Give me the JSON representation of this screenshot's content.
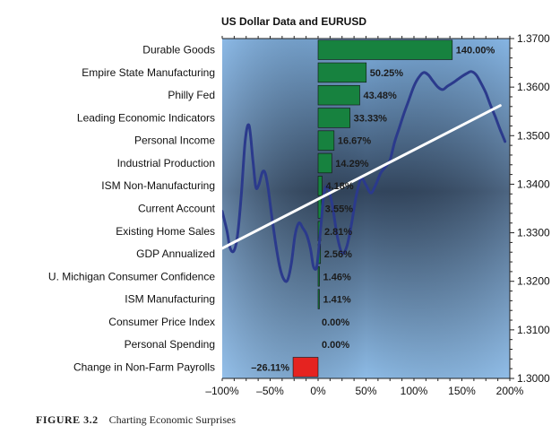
{
  "caption": {
    "figure": "FIGURE 3.2",
    "text": "Charting Economic Surprises"
  },
  "colors": {
    "positive_bar": "#17823f",
    "negative_bar": "#e52320",
    "eurusd_line": "#2b3a8c",
    "trend_line": "#ffffff"
  },
  "chart_data": {
    "type": "bar",
    "orientation": "horizontal",
    "title": "US Dollar Data and EURUSD",
    "categories": [
      "Durable Goods",
      "Empire State Manufacturing",
      "Philly Fed",
      "Leading Economic Indicators",
      "Personal Income",
      "Industrial Production",
      "ISM Non-Manufacturing",
      "Current Account",
      "Existing Home Sales",
      "GDP Annualized",
      "U. Michigan Consumer Confidence",
      "ISM Manufacturing",
      "Consumer Price Index",
      "Personal Spending",
      "Change in Non-Farm Payrolls"
    ],
    "values": [
      140.0,
      50.25,
      43.48,
      33.33,
      16.67,
      14.29,
      4.18,
      3.55,
      2.81,
      2.56,
      1.46,
      1.41,
      0.0,
      0.0,
      -26.11
    ],
    "value_labels": [
      "140.00%",
      "50.25%",
      "43.48%",
      "33.33%",
      "16.67%",
      "14.29%",
      "4.18%",
      "3.55%",
      "2.81%",
      "2.56%",
      "1.46%",
      "1.41%",
      "0.00%",
      "0.00%",
      "–26.11%"
    ],
    "xlim": [
      -100,
      200
    ],
    "xticks": [
      -100,
      -50,
      0,
      50,
      100,
      150,
      200
    ],
    "xtick_labels": [
      "–100%",
      "–50%",
      "0%",
      "50%",
      "100%",
      "150%",
      "200%"
    ],
    "secondary_axis": {
      "side": "right",
      "range": [
        1.3,
        1.37
      ],
      "ticks": [
        1.3,
        1.31,
        1.32,
        1.33,
        1.34,
        1.35,
        1.36,
        1.37
      ],
      "tick_labels": [
        "1.3000",
        "1.3100",
        "1.3200",
        "1.3300",
        "1.3400",
        "1.3500",
        "1.3600",
        "1.3700"
      ]
    },
    "overlay_series": {
      "type": "line",
      "x": [
        -100,
        -95,
        -92,
        -88,
        -84,
        -80,
        -76,
        -72,
        -68,
        -65,
        -62,
        -58,
        -55,
        -52,
        -48,
        -44,
        -40,
        -36,
        -32,
        -28,
        -24,
        -20,
        -16,
        -12,
        -8,
        -5,
        -2,
        0,
        3,
        6,
        10,
        15,
        20,
        25,
        30,
        35,
        40,
        45,
        50,
        55,
        60,
        65,
        70,
        75,
        80,
        85,
        90,
        95,
        100,
        105,
        110,
        115,
        120,
        125,
        130,
        135,
        140,
        145,
        150,
        155,
        160,
        165,
        170,
        175,
        180,
        185,
        190,
        195
      ],
      "y": [
        1.3344,
        1.3304,
        1.327,
        1.3262,
        1.3295,
        1.338,
        1.349,
        1.3521,
        1.345,
        1.3395,
        1.3398,
        1.3425,
        1.3422,
        1.339,
        1.333,
        1.3275,
        1.323,
        1.3205,
        1.3202,
        1.3235,
        1.3295,
        1.332,
        1.331,
        1.3296,
        1.3268,
        1.3232,
        1.3226,
        1.3252,
        1.3315,
        1.3378,
        1.3395,
        1.3355,
        1.3293,
        1.3258,
        1.3272,
        1.332,
        1.3378,
        1.3412,
        1.3398,
        1.3382,
        1.3398,
        1.3422,
        1.3435,
        1.345,
        1.3488,
        1.3518,
        1.3548,
        1.3575,
        1.3602,
        1.362,
        1.363,
        1.3625,
        1.3612,
        1.36,
        1.3595,
        1.3602,
        1.3608,
        1.3615,
        1.3622,
        1.3628,
        1.3632,
        1.3625,
        1.3608,
        1.3588,
        1.3562,
        1.3538,
        1.3512,
        1.3488
      ]
    },
    "trend_line": {
      "type": "line",
      "x": [
        -100,
        190
      ],
      "y": [
        1.3268,
        1.3562
      ]
    },
    "grid": false,
    "legend": "none"
  }
}
